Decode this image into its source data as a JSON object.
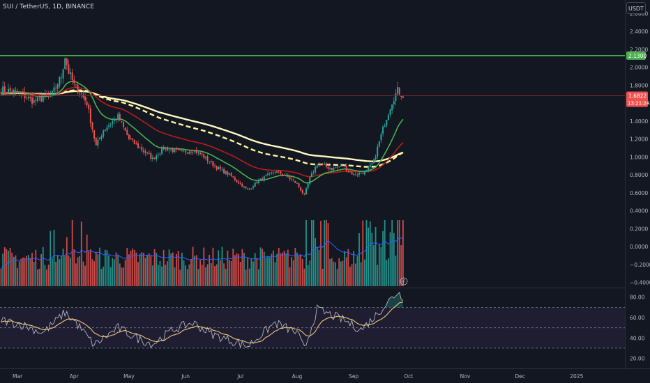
{
  "header": {
    "title": "SUI / TetherUS, 1D, BINANCE",
    "currency_button": "USDT"
  },
  "colors": {
    "background": "#131722",
    "up": "#26a69a",
    "down": "#ef5350",
    "resistance": "#4caf50",
    "ema_fast": "#4caf50",
    "ema_mid": "#b71c1c",
    "ema_slow1": "#fff59d",
    "ema_slow2": "#fff9c4",
    "vol_ma": "#2962ff",
    "rsi_line": "#b2b5be",
    "rsi_ma": "#f0c878",
    "rsi_band": "#7e57c2"
  },
  "chart_data": [
    {
      "type": "candlestick",
      "panel": "price",
      "ylim": [
        -0.45,
        2.75
      ],
      "y_ticks": [
        "2.6000",
        "2.4000",
        "2.2000",
        "2.0000",
        "1.8000",
        "1.6000",
        "1.4000",
        "1.2000",
        "1.0000",
        "0.8000",
        "0.6000",
        "0.4000",
        "0.2000",
        "0.0000",
        "−0.2000",
        "−0.4000"
      ],
      "x_ticks": [
        "Mar",
        "Apr",
        "May",
        "Jun",
        "Jul",
        "Aug",
        "Sep",
        "Oct",
        "Nov",
        "Dec",
        "2025"
      ],
      "anchors": [
        {
          "date": "2024-02-21",
          "close": 1.75
        },
        {
          "date": "2024-03-01",
          "close": 1.72
        },
        {
          "date": "2024-03-10",
          "close": 1.62
        },
        {
          "date": "2024-03-20",
          "close": 1.7
        },
        {
          "date": "2024-03-25",
          "close": 1.9
        },
        {
          "date": "2024-03-27",
          "close": 2.12
        },
        {
          "date": "2024-03-29",
          "close": 1.95
        },
        {
          "date": "2024-04-01",
          "close": 1.8
        },
        {
          "date": "2024-04-05",
          "close": 1.7
        },
        {
          "date": "2024-04-08",
          "close": 1.6
        },
        {
          "date": "2024-04-13",
          "close": 1.12
        },
        {
          "date": "2024-04-17",
          "close": 1.3
        },
        {
          "date": "2024-04-25",
          "close": 1.45
        },
        {
          "date": "2024-05-01",
          "close": 1.2
        },
        {
          "date": "2024-05-10",
          "close": 1.05
        },
        {
          "date": "2024-05-14",
          "close": 0.98
        },
        {
          "date": "2024-05-20",
          "close": 1.1
        },
        {
          "date": "2024-05-30",
          "close": 1.05
        },
        {
          "date": "2024-06-05",
          "close": 1.08
        },
        {
          "date": "2024-06-10",
          "close": 1.02
        },
        {
          "date": "2024-06-18",
          "close": 0.88
        },
        {
          "date": "2024-06-25",
          "close": 0.8
        },
        {
          "date": "2024-07-05",
          "close": 0.63
        },
        {
          "date": "2024-07-10",
          "close": 0.72
        },
        {
          "date": "2024-07-20",
          "close": 0.84
        },
        {
          "date": "2024-07-25",
          "close": 0.8
        },
        {
          "date": "2024-08-01",
          "close": 0.7
        },
        {
          "date": "2024-08-05",
          "close": 0.57
        },
        {
          "date": "2024-08-08",
          "close": 0.76
        },
        {
          "date": "2024-08-12",
          "close": 0.92
        },
        {
          "date": "2024-08-20",
          "close": 0.87
        },
        {
          "date": "2024-08-26",
          "close": 0.9
        },
        {
          "date": "2024-09-01",
          "close": 0.8
        },
        {
          "date": "2024-09-08",
          "close": 0.84
        },
        {
          "date": "2024-09-12",
          "close": 0.95
        },
        {
          "date": "2024-09-14",
          "close": 1.1
        },
        {
          "date": "2024-09-18",
          "close": 1.38
        },
        {
          "date": "2024-09-22",
          "close": 1.62
        },
        {
          "date": "2024-09-25",
          "close": 1.74
        },
        {
          "date": "2024-09-28",
          "close": 1.6822
        }
      ],
      "ema_fast_end": 1.42,
      "ema_mid_end": 1.16,
      "ema_slow_end": 1.05,
      "resistance_level": "2.1300",
      "last_price": "1.6822",
      "countdown": "13:21:24",
      "volume_axis_values": [
        0.2,
        0.0,
        -0.2,
        -0.4
      ],
      "volume_hint": "relative daily volume shown in bottom quarter of price pane; spikes around Mar-Apr, early Aug and Sep"
    },
    {
      "type": "line",
      "panel": "rsi",
      "ylim": [
        15,
        88
      ],
      "y_ticks": [
        "80.00",
        "60.00",
        "40.00",
        "20.00"
      ],
      "bands": {
        "upper": 70,
        "middle": 50,
        "lower": 30
      },
      "anchors": [
        {
          "date": "2024-02-21",
          "value": 58
        },
        {
          "date": "2024-03-05",
          "value": 52
        },
        {
          "date": "2024-03-15",
          "value": 45
        },
        {
          "date": "2024-03-27",
          "value": 65
        },
        {
          "date": "2024-04-02",
          "value": 55
        },
        {
          "date": "2024-04-12",
          "value": 33
        },
        {
          "date": "2024-04-25",
          "value": 50
        },
        {
          "date": "2024-05-05",
          "value": 40
        },
        {
          "date": "2024-05-14",
          "value": 34
        },
        {
          "date": "2024-05-25",
          "value": 48
        },
        {
          "date": "2024-06-05",
          "value": 55
        },
        {
          "date": "2024-06-15",
          "value": 44
        },
        {
          "date": "2024-06-28",
          "value": 36
        },
        {
          "date": "2024-07-05",
          "value": 32
        },
        {
          "date": "2024-07-20",
          "value": 55
        },
        {
          "date": "2024-08-01",
          "value": 45
        },
        {
          "date": "2024-08-05",
          "value": 29
        },
        {
          "date": "2024-08-12",
          "value": 68
        },
        {
          "date": "2024-08-26",
          "value": 58
        },
        {
          "date": "2024-09-05",
          "value": 48
        },
        {
          "date": "2024-09-12",
          "value": 60
        },
        {
          "date": "2024-09-18",
          "value": 72
        },
        {
          "date": "2024-09-25",
          "value": 85
        },
        {
          "date": "2024-09-28",
          "value": 80
        }
      ]
    }
  ]
}
